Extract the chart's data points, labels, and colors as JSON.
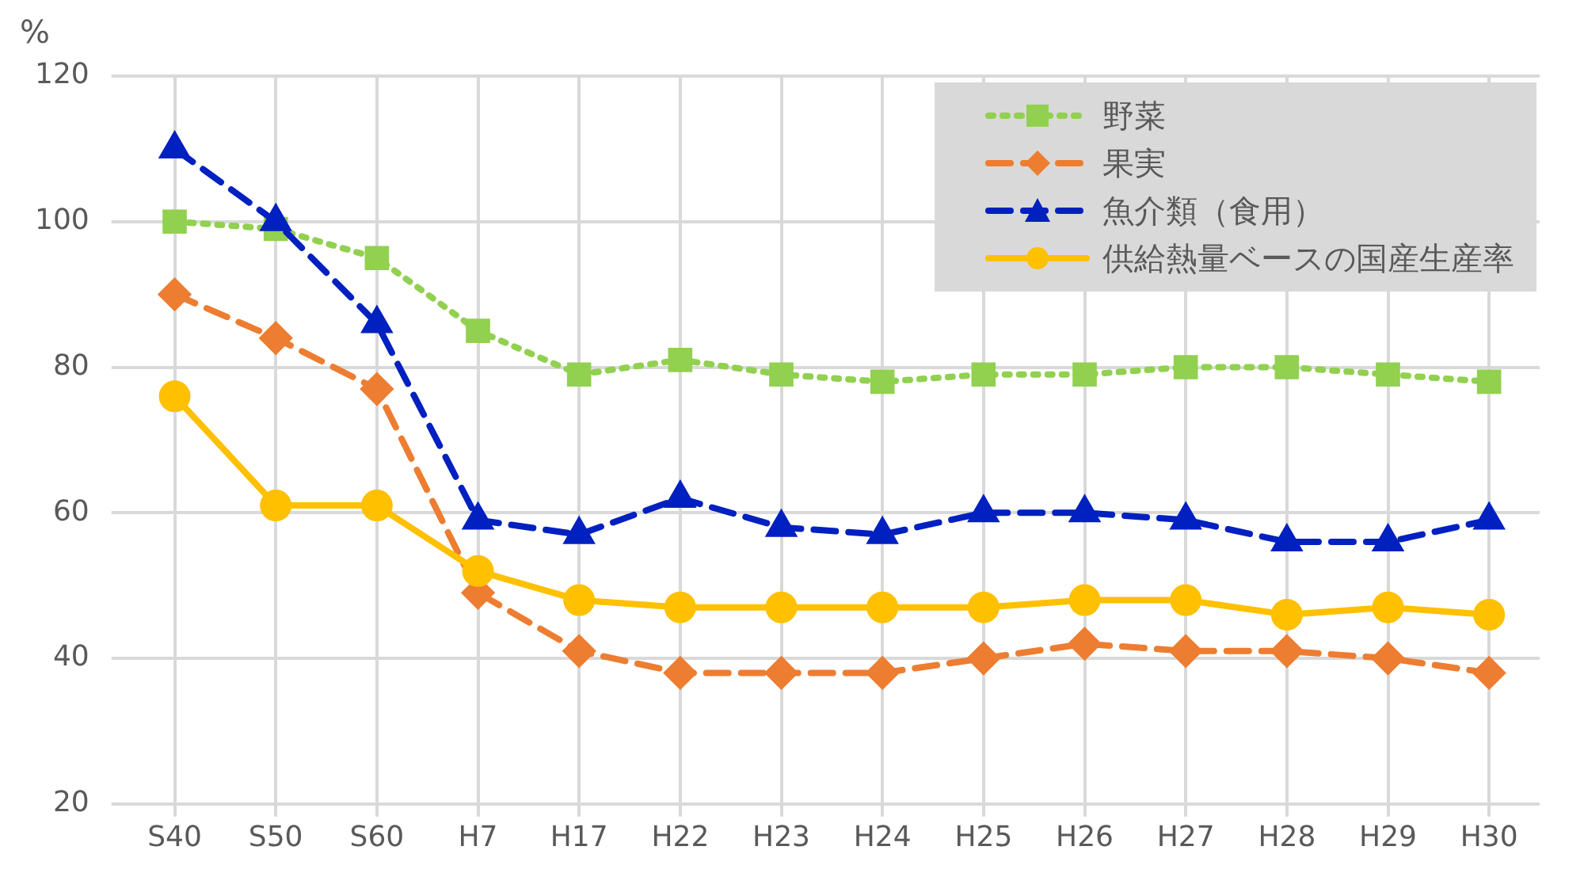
{
  "chart_data": {
    "type": "line",
    "ylabel": "%",
    "categories": [
      "S40",
      "S50",
      "S60",
      "H7",
      "H17",
      "H22",
      "H23",
      "H24",
      "H25",
      "H26",
      "H27",
      "H28",
      "H29",
      "H30"
    ],
    "series": [
      {
        "name": "野菜",
        "color": "#92d050",
        "marker": "square",
        "line_style": "dotted",
        "values": [
          100,
          99,
          95,
          85,
          79,
          81,
          79,
          78,
          79,
          79,
          80,
          80,
          79,
          78
        ]
      },
      {
        "name": "果実",
        "color": "#ed7d31",
        "marker": "diamond",
        "line_style": "dashed",
        "values": [
          90,
          84,
          77,
          49,
          41,
          38,
          38,
          38,
          40,
          42,
          41,
          41,
          40,
          38
        ]
      },
      {
        "name": "魚介類（食用）",
        "color": "#0020c0",
        "marker": "triangle",
        "line_style": "dashed",
        "values": [
          110,
          100,
          86,
          59,
          57,
          62,
          58,
          57,
          60,
          60,
          59,
          56,
          56,
          59
        ]
      },
      {
        "name": "供給熱量ベースの国産生産率",
        "color": "#ffc000",
        "marker": "circle",
        "line_style": "solid",
        "values": [
          76,
          61,
          61,
          52,
          48,
          47,
          47,
          47,
          47,
          48,
          48,
          46,
          47,
          46
        ]
      }
    ],
    "ylim": [
      20,
      120
    ],
    "yticks": [
      20,
      40,
      60,
      80,
      100,
      120
    ],
    "grid": true,
    "legend": "top right"
  }
}
